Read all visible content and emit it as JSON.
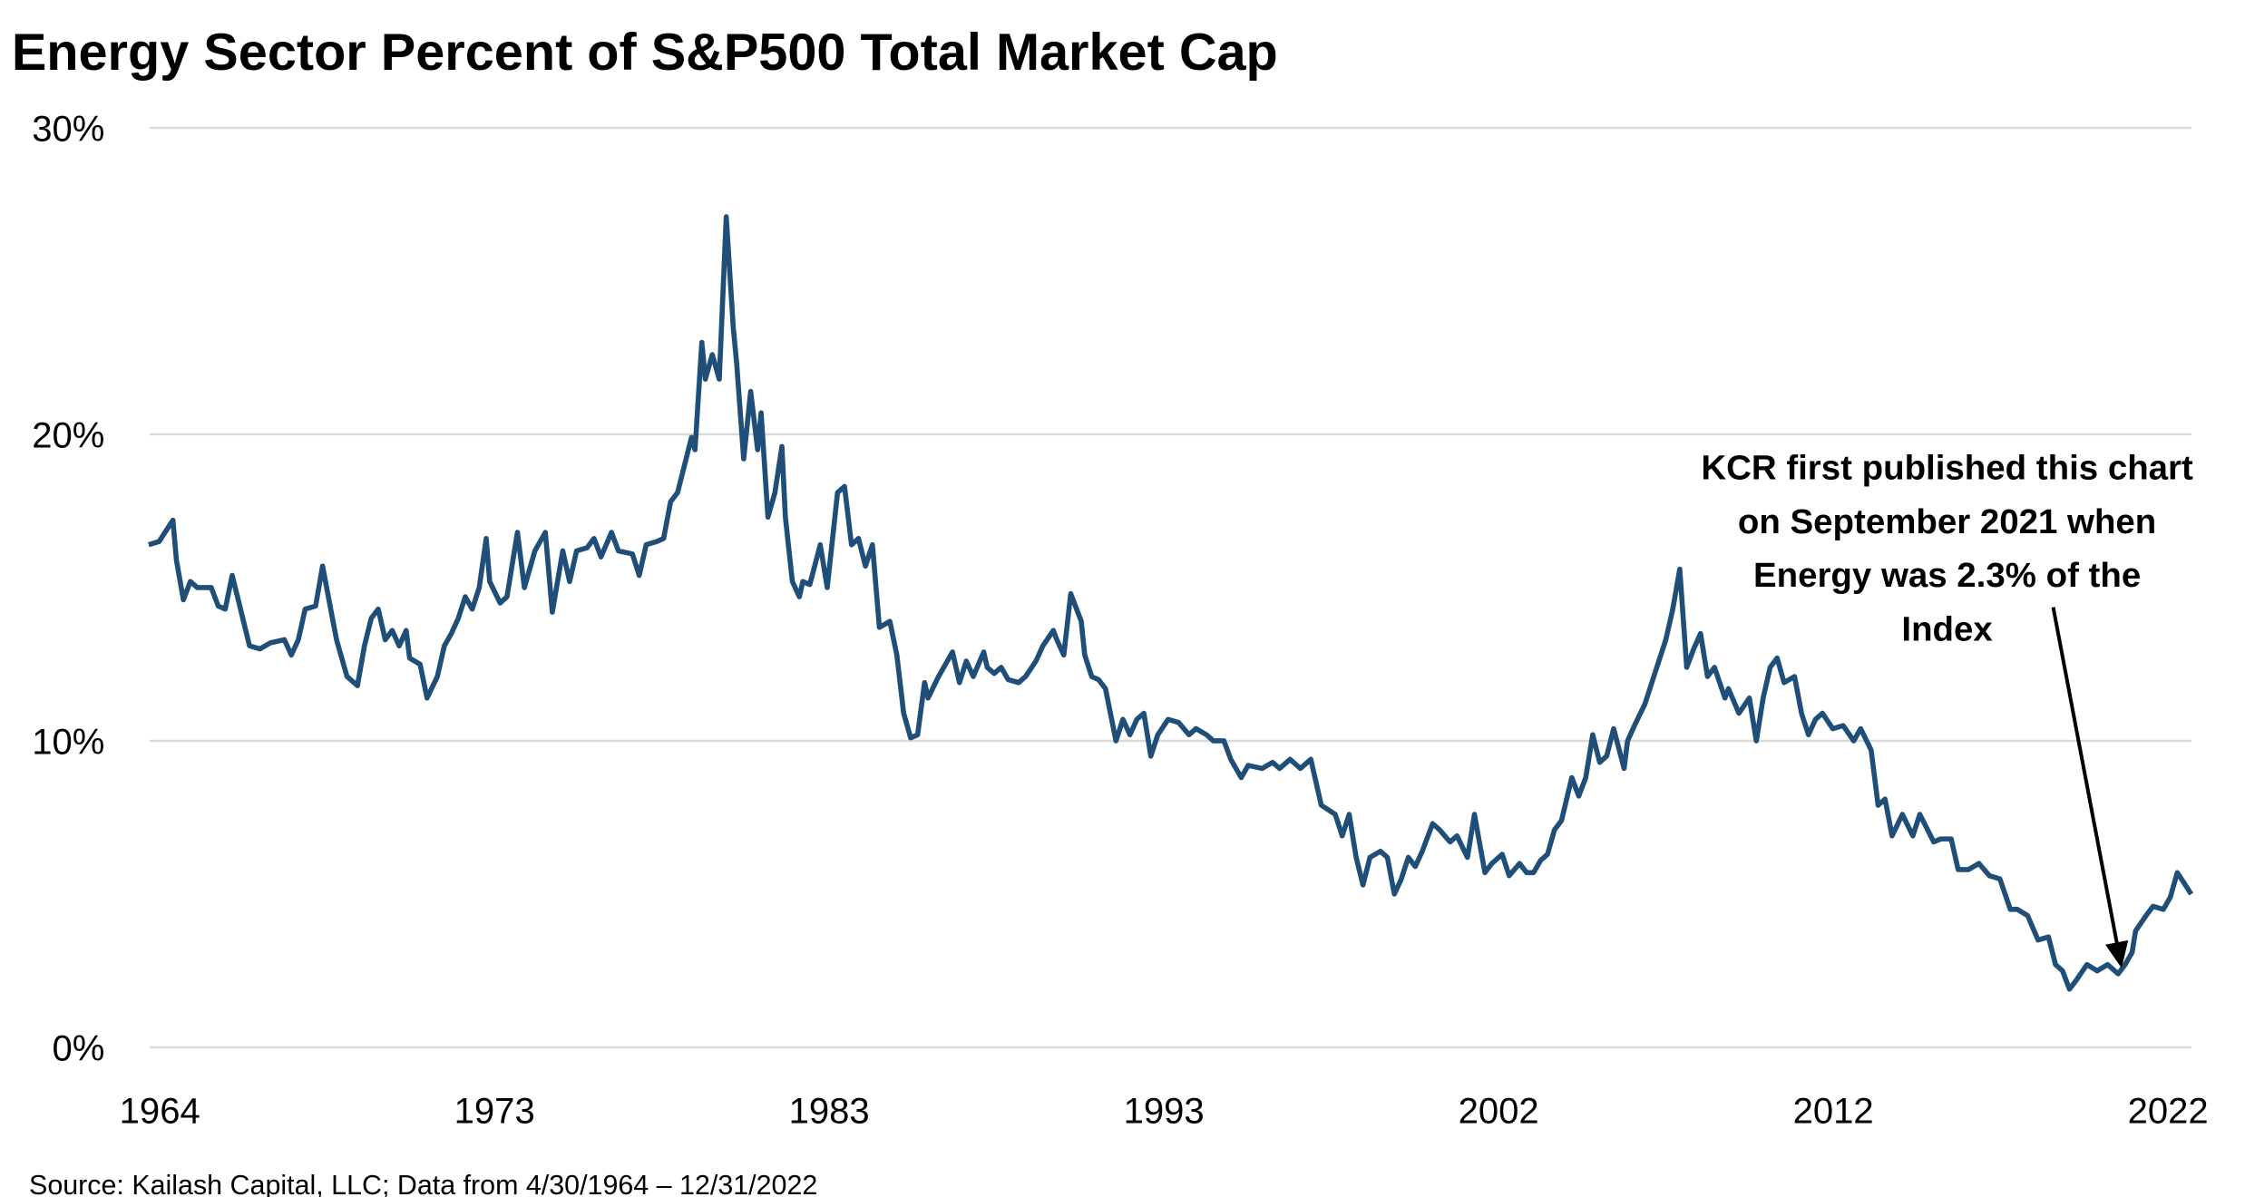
{
  "chart_data": {
    "type": "line",
    "title": "Energy Sector Percent of S&P500 Total Market Cap",
    "source": "Source: Kailash Capital, LLC; Data from 4/30/1964 – 12/31/2022",
    "xlabel": "",
    "ylabel": "",
    "xlim": [
      1964.33,
      2023.0
    ],
    "ylim": [
      0,
      30
    ],
    "y_ticks": [
      0,
      10,
      20,
      30
    ],
    "y_tick_labels": [
      "0%",
      "10%",
      "20%",
      "30%"
    ],
    "x_tick_labels": [
      "1964",
      "1973",
      "1983",
      "1993",
      "2002",
      "2012",
      "2022"
    ],
    "grid": "horizontal",
    "legend": "none",
    "line_color": "#1f4e79",
    "annotation": {
      "lines": [
        "KCR first published this chart",
        "on September 2021 when",
        "Energy was 2.3% of the",
        "Index"
      ],
      "arrow_target": [
        2021.0,
        2.3
      ]
    },
    "series": [
      {
        "points": [
          [
            1964.3,
            16.4
          ],
          [
            1964.6,
            16.5
          ],
          [
            1965.0,
            17.2
          ],
          [
            1965.1,
            15.9
          ],
          [
            1965.3,
            14.6
          ],
          [
            1965.5,
            15.2
          ],
          [
            1965.7,
            15.0
          ],
          [
            1966.1,
            15.0
          ],
          [
            1966.3,
            14.4
          ],
          [
            1966.5,
            14.3
          ],
          [
            1966.7,
            15.4
          ],
          [
            1966.9,
            14.5
          ],
          [
            1967.2,
            13.1
          ],
          [
            1967.5,
            13.0
          ],
          [
            1967.8,
            13.2
          ],
          [
            1968.2,
            13.3
          ],
          [
            1968.4,
            12.8
          ],
          [
            1968.6,
            13.3
          ],
          [
            1968.8,
            14.3
          ],
          [
            1969.1,
            14.4
          ],
          [
            1969.3,
            15.7
          ],
          [
            1969.5,
            14.5
          ],
          [
            1969.7,
            13.3
          ],
          [
            1970.0,
            12.1
          ],
          [
            1970.3,
            11.8
          ],
          [
            1970.5,
            13.1
          ],
          [
            1970.7,
            14.0
          ],
          [
            1970.9,
            14.3
          ],
          [
            1971.1,
            13.3
          ],
          [
            1971.3,
            13.6
          ],
          [
            1971.5,
            13.1
          ],
          [
            1971.7,
            13.6
          ],
          [
            1971.8,
            12.7
          ],
          [
            1972.1,
            12.5
          ],
          [
            1972.3,
            11.4
          ],
          [
            1972.6,
            12.1
          ],
          [
            1972.8,
            13.1
          ],
          [
            1973.0,
            13.5
          ],
          [
            1973.2,
            14.0
          ],
          [
            1973.4,
            14.7
          ],
          [
            1973.6,
            14.3
          ],
          [
            1973.8,
            15.0
          ],
          [
            1974.0,
            16.6
          ],
          [
            1974.1,
            15.2
          ],
          [
            1974.4,
            14.5
          ],
          [
            1974.6,
            14.7
          ],
          [
            1974.9,
            16.8
          ],
          [
            1975.1,
            15.0
          ],
          [
            1975.4,
            16.2
          ],
          [
            1975.7,
            16.8
          ],
          [
            1975.9,
            14.2
          ],
          [
            1976.2,
            16.2
          ],
          [
            1976.4,
            15.2
          ],
          [
            1976.6,
            16.2
          ],
          [
            1976.9,
            16.3
          ],
          [
            1977.1,
            16.6
          ],
          [
            1977.3,
            16.0
          ],
          [
            1977.6,
            16.8
          ],
          [
            1977.8,
            16.2
          ],
          [
            1978.2,
            16.1
          ],
          [
            1978.4,
            15.4
          ],
          [
            1978.6,
            16.4
          ],
          [
            1978.9,
            16.5
          ],
          [
            1979.1,
            16.6
          ],
          [
            1979.3,
            17.8
          ],
          [
            1979.5,
            18.1
          ],
          [
            1979.7,
            19.0
          ],
          [
            1979.9,
            19.9
          ],
          [
            1980.0,
            19.5
          ],
          [
            1980.2,
            23.0
          ],
          [
            1980.3,
            21.8
          ],
          [
            1980.5,
            22.6
          ],
          [
            1980.7,
            21.8
          ],
          [
            1980.9,
            27.1
          ],
          [
            1981.1,
            23.5
          ],
          [
            1981.2,
            22.3
          ],
          [
            1981.4,
            19.2
          ],
          [
            1981.6,
            21.4
          ],
          [
            1981.8,
            19.5
          ],
          [
            1981.9,
            20.7
          ],
          [
            1982.1,
            17.3
          ],
          [
            1982.3,
            18.1
          ],
          [
            1982.5,
            19.6
          ],
          [
            1982.6,
            17.3
          ],
          [
            1982.8,
            15.2
          ],
          [
            1983.0,
            14.7
          ],
          [
            1983.1,
            15.2
          ],
          [
            1983.3,
            15.1
          ],
          [
            1983.6,
            16.4
          ],
          [
            1983.8,
            15.0
          ],
          [
            1984.1,
            18.1
          ],
          [
            1984.3,
            18.3
          ],
          [
            1984.5,
            16.4
          ],
          [
            1984.7,
            16.6
          ],
          [
            1984.9,
            15.7
          ],
          [
            1985.1,
            16.4
          ],
          [
            1985.3,
            13.7
          ],
          [
            1985.6,
            13.9
          ],
          [
            1985.8,
            12.8
          ],
          [
            1986.0,
            10.9
          ],
          [
            1986.2,
            10.1
          ],
          [
            1986.4,
            10.2
          ],
          [
            1986.6,
            11.9
          ],
          [
            1986.7,
            11.4
          ],
          [
            1987.0,
            12.1
          ],
          [
            1987.2,
            12.5
          ],
          [
            1987.4,
            12.9
          ],
          [
            1987.6,
            11.9
          ],
          [
            1987.8,
            12.6
          ],
          [
            1988.0,
            12.1
          ],
          [
            1988.3,
            12.9
          ],
          [
            1988.4,
            12.4
          ],
          [
            1988.6,
            12.2
          ],
          [
            1988.8,
            12.4
          ],
          [
            1989.0,
            12.0
          ],
          [
            1989.3,
            11.9
          ],
          [
            1989.5,
            12.1
          ],
          [
            1989.8,
            12.6
          ],
          [
            1990.0,
            13.1
          ],
          [
            1990.3,
            13.6
          ],
          [
            1990.4,
            13.3
          ],
          [
            1990.6,
            12.8
          ],
          [
            1990.8,
            14.8
          ],
          [
            1991.1,
            13.9
          ],
          [
            1991.2,
            12.8
          ],
          [
            1991.4,
            12.1
          ],
          [
            1991.6,
            12.0
          ],
          [
            1991.8,
            11.7
          ],
          [
            1992.1,
            10.0
          ],
          [
            1992.3,
            10.7
          ],
          [
            1992.5,
            10.2
          ],
          [
            1992.7,
            10.7
          ],
          [
            1992.9,
            10.9
          ],
          [
            1993.1,
            9.5
          ],
          [
            1993.3,
            10.2
          ],
          [
            1993.6,
            10.7
          ],
          [
            1993.9,
            10.6
          ],
          [
            1994.2,
            10.2
          ],
          [
            1994.4,
            10.4
          ],
          [
            1994.7,
            10.2
          ],
          [
            1994.9,
            10.0
          ],
          [
            1995.2,
            10.0
          ],
          [
            1995.4,
            9.4
          ],
          [
            1995.7,
            8.8
          ],
          [
            1995.9,
            9.2
          ],
          [
            1996.3,
            9.1
          ],
          [
            1996.6,
            9.3
          ],
          [
            1996.8,
            9.1
          ],
          [
            1997.1,
            9.4
          ],
          [
            1997.4,
            9.1
          ],
          [
            1997.7,
            9.4
          ],
          [
            1998.0,
            7.9
          ],
          [
            1998.4,
            7.6
          ],
          [
            1998.6,
            6.9
          ],
          [
            1998.8,
            7.6
          ],
          [
            1999.0,
            6.2
          ],
          [
            1999.2,
            5.3
          ],
          [
            1999.4,
            6.2
          ],
          [
            1999.7,
            6.4
          ],
          [
            1999.9,
            6.2
          ],
          [
            2000.1,
            5.0
          ],
          [
            2000.3,
            5.5
          ],
          [
            2000.5,
            6.2
          ],
          [
            2000.7,
            5.9
          ],
          [
            2000.9,
            6.4
          ],
          [
            2001.2,
            7.3
          ],
          [
            2001.4,
            7.1
          ],
          [
            2001.7,
            6.7
          ],
          [
            2001.9,
            6.9
          ],
          [
            2002.2,
            6.2
          ],
          [
            2002.4,
            7.6
          ],
          [
            2002.7,
            5.7
          ],
          [
            2002.9,
            6.0
          ],
          [
            2003.2,
            6.3
          ],
          [
            2003.4,
            5.6
          ],
          [
            2003.7,
            6.0
          ],
          [
            2003.9,
            5.7
          ],
          [
            2004.1,
            5.7
          ],
          [
            2004.3,
            6.1
          ],
          [
            2004.5,
            6.3
          ],
          [
            2004.7,
            7.1
          ],
          [
            2004.9,
            7.4
          ],
          [
            2005.2,
            8.8
          ],
          [
            2005.4,
            8.2
          ],
          [
            2005.6,
            8.8
          ],
          [
            2005.8,
            10.2
          ],
          [
            2006.0,
            9.3
          ],
          [
            2006.2,
            9.5
          ],
          [
            2006.4,
            10.4
          ],
          [
            2006.7,
            9.1
          ],
          [
            2006.8,
            10.0
          ],
          [
            2007.0,
            10.5
          ],
          [
            2007.3,
            11.2
          ],
          [
            2007.5,
            11.9
          ],
          [
            2007.7,
            12.6
          ],
          [
            2007.9,
            13.3
          ],
          [
            2008.1,
            14.3
          ],
          [
            2008.3,
            15.6
          ],
          [
            2008.5,
            12.4
          ],
          [
            2008.7,
            13.0
          ],
          [
            2008.9,
            13.5
          ],
          [
            2009.1,
            12.1
          ],
          [
            2009.3,
            12.4
          ],
          [
            2009.6,
            11.4
          ],
          [
            2009.7,
            11.7
          ],
          [
            2010.0,
            10.9
          ],
          [
            2010.3,
            11.4
          ],
          [
            2010.5,
            10.0
          ],
          [
            2010.7,
            11.4
          ],
          [
            2010.9,
            12.4
          ],
          [
            2011.1,
            12.7
          ],
          [
            2011.3,
            11.9
          ],
          [
            2011.6,
            12.1
          ],
          [
            2011.8,
            10.9
          ],
          [
            2012.0,
            10.2
          ],
          [
            2012.2,
            10.7
          ],
          [
            2012.4,
            10.9
          ],
          [
            2012.7,
            10.4
          ],
          [
            2013.0,
            10.5
          ],
          [
            2013.3,
            10.0
          ],
          [
            2013.5,
            10.4
          ],
          [
            2013.8,
            9.7
          ],
          [
            2014.0,
            7.9
          ],
          [
            2014.2,
            8.1
          ],
          [
            2014.4,
            6.9
          ],
          [
            2014.7,
            7.6
          ],
          [
            2015.0,
            6.9
          ],
          [
            2015.2,
            7.6
          ],
          [
            2015.6,
            6.7
          ],
          [
            2015.8,
            6.8
          ],
          [
            2016.1,
            6.8
          ],
          [
            2016.3,
            5.8
          ],
          [
            2016.6,
            5.8
          ],
          [
            2016.9,
            6.0
          ],
          [
            2017.2,
            5.6
          ],
          [
            2017.5,
            5.5
          ],
          [
            2017.8,
            4.5
          ],
          [
            2018.0,
            4.5
          ],
          [
            2018.3,
            4.3
          ],
          [
            2018.6,
            3.5
          ],
          [
            2018.9,
            3.6
          ],
          [
            2019.1,
            2.7
          ],
          [
            2019.3,
            2.5
          ],
          [
            2019.5,
            1.9
          ],
          [
            2019.7,
            2.2
          ],
          [
            2020.0,
            2.7
          ],
          [
            2020.3,
            2.5
          ],
          [
            2020.6,
            2.7
          ],
          [
            2020.9,
            2.4
          ],
          [
            2021.1,
            2.7
          ],
          [
            2021.3,
            3.1
          ],
          [
            2021.4,
            3.8
          ],
          [
            2021.7,
            4.3
          ],
          [
            2021.9,
            4.6
          ],
          [
            2022.2,
            4.5
          ],
          [
            2022.4,
            4.9
          ],
          [
            2022.6,
            5.7
          ],
          [
            2023.0,
            5.0
          ]
        ]
      }
    ]
  }
}
